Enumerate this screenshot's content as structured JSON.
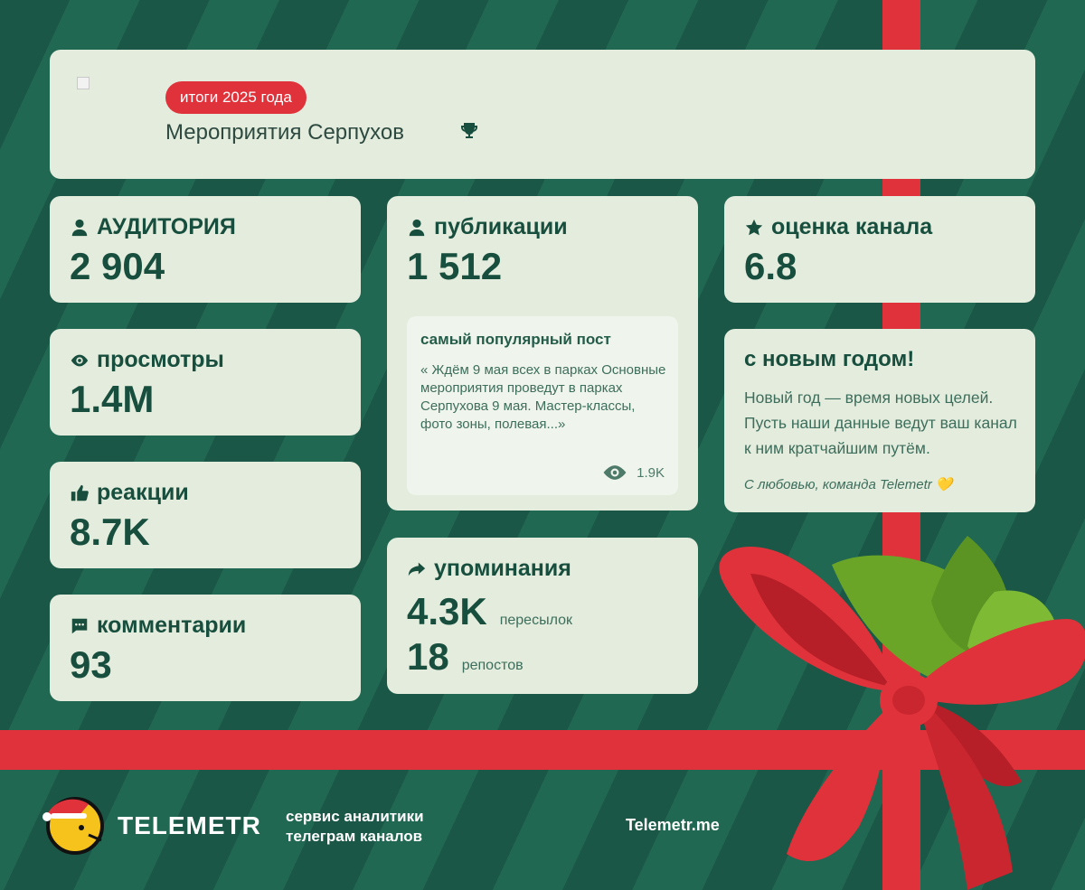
{
  "header": {
    "badge": "итоги 2025 года",
    "channel_name": "Мероприятия Серпухов"
  },
  "stats": {
    "audience": {
      "label": "АУДИТОРИЯ",
      "value": "2 904"
    },
    "views": {
      "label": "просмотры",
      "value": "1.4M"
    },
    "reactions": {
      "label": "реакции",
      "value": "8.7K"
    },
    "comments": {
      "label": "комментарии",
      "value": "93"
    },
    "publications": {
      "label": "публикации",
      "value": "1 512"
    },
    "rating": {
      "label": "оценка канала",
      "value": "6.8"
    }
  },
  "popular_post": {
    "title": "самый популярный пост",
    "text": "« Ждём 9 мая всех в парках Основные мероприятия проведут в парках Серпухова 9 мая. Мастер-классы, фото зоны, полевая...»",
    "views": "1.9K"
  },
  "mentions": {
    "label": "упоминания",
    "forwards_value": "4.3K",
    "forwards_label": "пересылок",
    "reposts_value": "18",
    "reposts_label": "репостов"
  },
  "new_year": {
    "title": "с новым годом!",
    "text": "Новый год — время новых целей. Пусть наши данные ведут ваш канал к ним кратчайшим путём.",
    "signature": "С любовью, команда Telemetr 💛"
  },
  "footer": {
    "logo_text": "TELEMETR",
    "tagline_line1": "сервис аналитики",
    "tagline_line2": "телеграм каналов",
    "site": "Telemetr.me"
  },
  "colors": {
    "background": "#1b5a48",
    "card": "#e3ecdd",
    "accent_red": "#e0323b",
    "text_dark_green": "#174e3d"
  }
}
